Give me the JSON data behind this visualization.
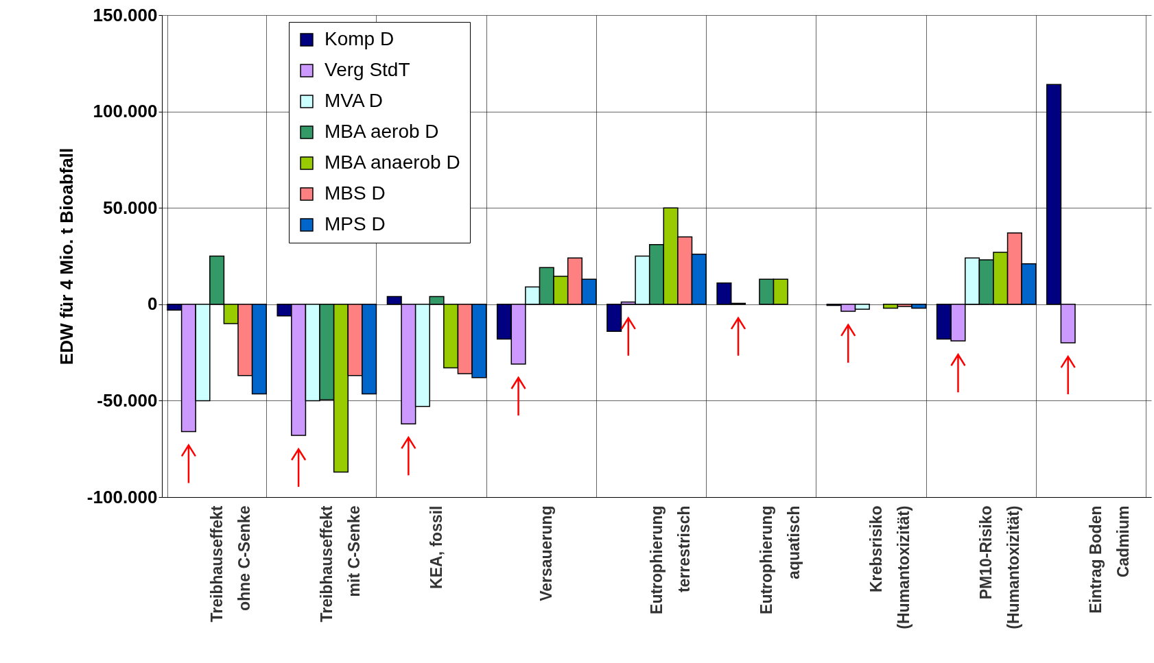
{
  "chart_data": {
    "type": "bar",
    "ylabel": "EDW für 4 Mio. t Bioabfall",
    "categories": [
      "Treibhauseffekt\nohne C-Senke",
      "Treibhauseffekt\nmit C-Senke",
      "KEA, fossil",
      "Versauerung",
      "Eutrophierung\nterrestrisch",
      "Eutrophierung\naquatisch",
      "Krebsrisiko\n(Humantoxizität)",
      "PM10-Risiko\n(Humantoxizität)",
      "Eintrag Boden\nCadmium"
    ],
    "series": [
      {
        "name": "Komp D",
        "color": "#000080",
        "values": [
          -3000,
          -6000,
          4000,
          -18000,
          -14000,
          11000,
          -600,
          -18000,
          114000
        ]
      },
      {
        "name": "Verg StdT",
        "color": "#cc99ff",
        "values": [
          -66000,
          -68000,
          -62000,
          -31000,
          1200,
          500,
          -3600,
          -19000,
          -20000
        ]
      },
      {
        "name": "MVA D",
        "color": "#ccffff",
        "values": [
          -50000,
          -50000,
          -53000,
          9000,
          25000,
          null,
          -2600,
          24000,
          null
        ]
      },
      {
        "name": "MBA aerob D",
        "color": "#339966",
        "values": [
          25000,
          -49500,
          4000,
          19000,
          31000,
          13000,
          null,
          23000,
          null
        ]
      },
      {
        "name": "MBA anaerob D",
        "color": "#99cc00",
        "values": [
          -10000,
          -87000,
          -33000,
          14500,
          50000,
          13000,
          -2000,
          27000,
          null
        ]
      },
      {
        "name": "MBS D",
        "color": "#ff8080",
        "values": [
          -37000,
          -37000,
          -36000,
          24000,
          35000,
          null,
          -1100,
          37000,
          null
        ]
      },
      {
        "name": "MPS D",
        "color": "#0066cc",
        "values": [
          -46500,
          -46500,
          -38000,
          13000,
          26000,
          null,
          -2000,
          21000,
          null
        ]
      }
    ],
    "ylim": [
      -100000,
      150000
    ],
    "yticks": [
      {
        "value": -100000,
        "label": "-100.000"
      },
      {
        "value": -50000,
        "label": "-50.000"
      },
      0,
      {
        "value": 50000,
        "label": "50.000"
      },
      {
        "value": 100000,
        "label": "100.000"
      },
      {
        "value": 150000,
        "label": "150.000"
      }
    ],
    "grid": true,
    "legend": "top left"
  }
}
